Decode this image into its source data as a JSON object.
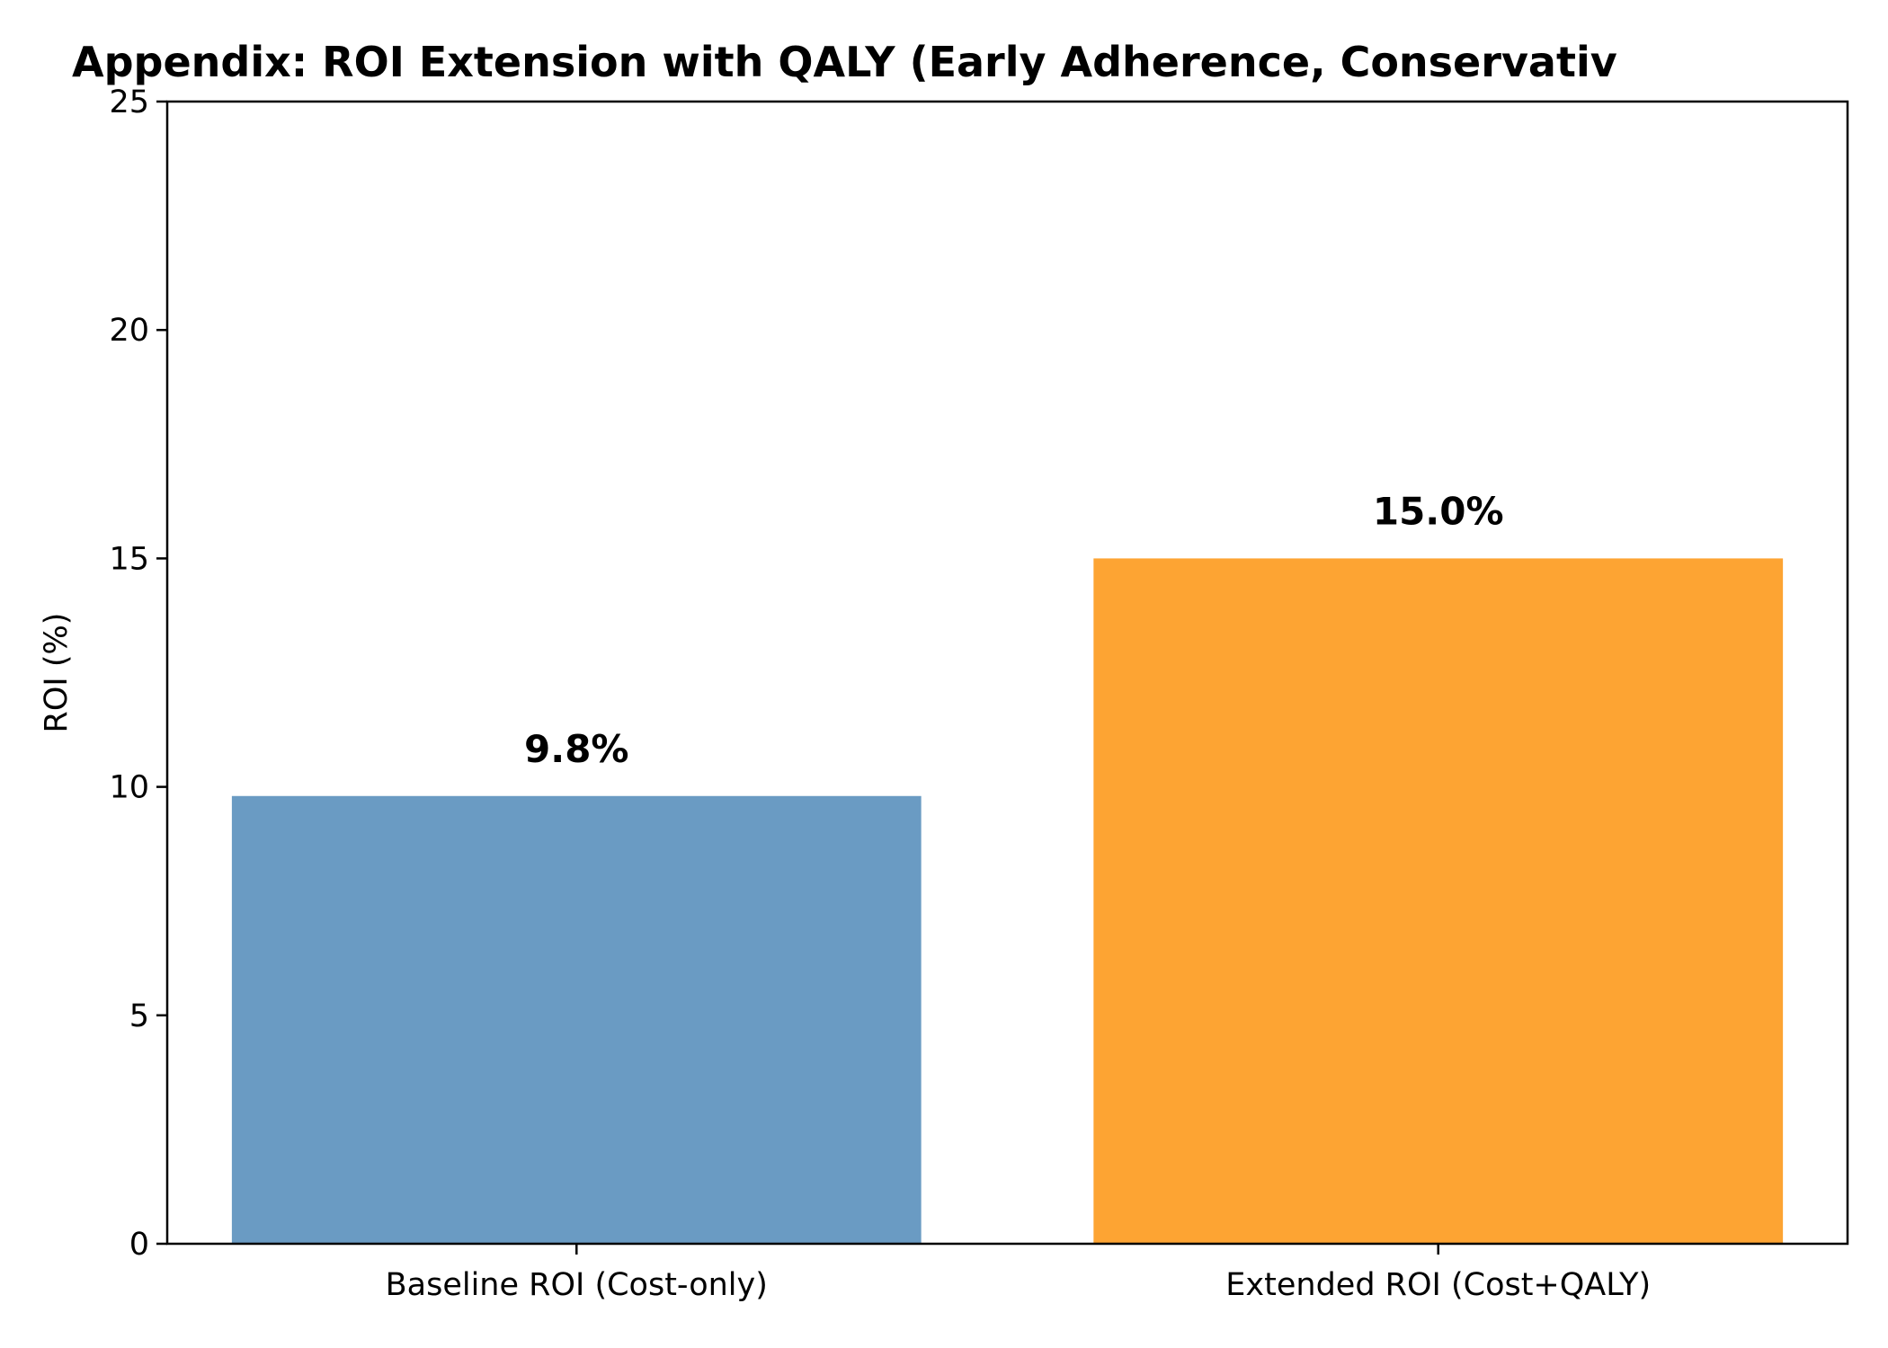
{
  "chart_data": {
    "type": "bar",
    "title": "Appendix: ROI Extension with QALY (Early Adherence, Conservativ",
    "xlabel": "",
    "ylabel": "ROI (%)",
    "ylim": [
      0,
      25
    ],
    "yticks": [
      0,
      5,
      10,
      15,
      20,
      25
    ],
    "grid": false,
    "legend": "none",
    "categories": [
      "Baseline ROI (Cost-only)",
      "Extended ROI (Cost+QALY)"
    ],
    "values": [
      9.8,
      15.0
    ],
    "data_labels": [
      "9.8%",
      "15.0%"
    ],
    "colors": [
      "#6a9bc3",
      "#fda433"
    ]
  }
}
